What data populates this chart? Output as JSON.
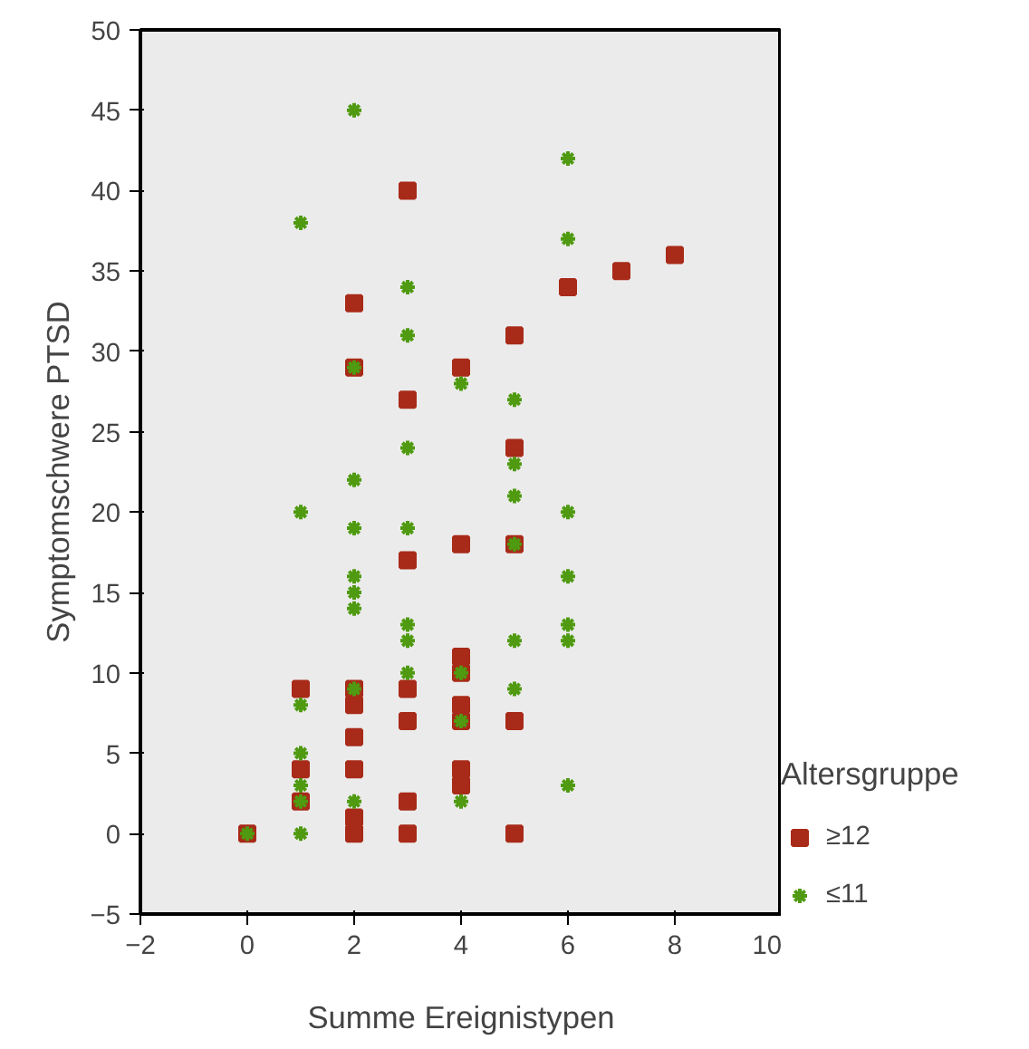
{
  "chart_data": {
    "type": "scatter",
    "xlabel": "Summe Ereignistypen",
    "ylabel": "Symptomschwere PTSD",
    "legend_title": "Altersgruppe",
    "xlim": [
      -2,
      10
    ],
    "xticks": [
      -2,
      0,
      2,
      4,
      6,
      8,
      10
    ],
    "ylim": [
      -5,
      50
    ],
    "yticks": [
      -5,
      0,
      5,
      10,
      15,
      20,
      25,
      30,
      35,
      40,
      45,
      50
    ],
    "grid": false,
    "legend": "right",
    "series": [
      {
        "name": "≥12",
        "color": "#a82a18",
        "marker": "square",
        "x": [
          0,
          1,
          1,
          1,
          2,
          2,
          2,
          2,
          2,
          2,
          2,
          2,
          3,
          3,
          3,
          3,
          3,
          3,
          3,
          4,
          4,
          4,
          4,
          4,
          4,
          4,
          4,
          5,
          5,
          5,
          5,
          5,
          6,
          7,
          8
        ],
        "values": [
          0,
          9,
          4,
          2,
          9,
          8,
          6,
          4,
          1,
          0,
          33,
          29,
          17,
          9,
          7,
          2,
          0,
          40,
          27,
          18,
          11,
          10,
          8,
          7,
          4,
          3,
          29,
          18,
          7,
          0,
          31,
          24,
          34,
          35,
          36
        ]
      },
      {
        "name": "≤11",
        "color": "#4f9a10",
        "marker": "cross",
        "x": [
          0,
          1,
          1,
          1,
          1,
          1,
          1,
          1,
          2,
          2,
          2,
          2,
          2,
          2,
          2,
          2,
          2,
          3,
          3,
          3,
          3,
          3,
          3,
          3,
          4,
          4,
          4,
          4,
          5,
          5,
          5,
          5,
          5,
          5,
          6,
          6,
          6,
          6,
          6,
          6,
          6
        ],
        "values": [
          0,
          38,
          20,
          8,
          5,
          3,
          2,
          0,
          45,
          29,
          22,
          19,
          16,
          15,
          14,
          9,
          2,
          34,
          31,
          24,
          19,
          13,
          12,
          10,
          28,
          10,
          7,
          2,
          27,
          23,
          21,
          18,
          12,
          9,
          42,
          37,
          20,
          16,
          13,
          12,
          3
        ]
      }
    ]
  }
}
